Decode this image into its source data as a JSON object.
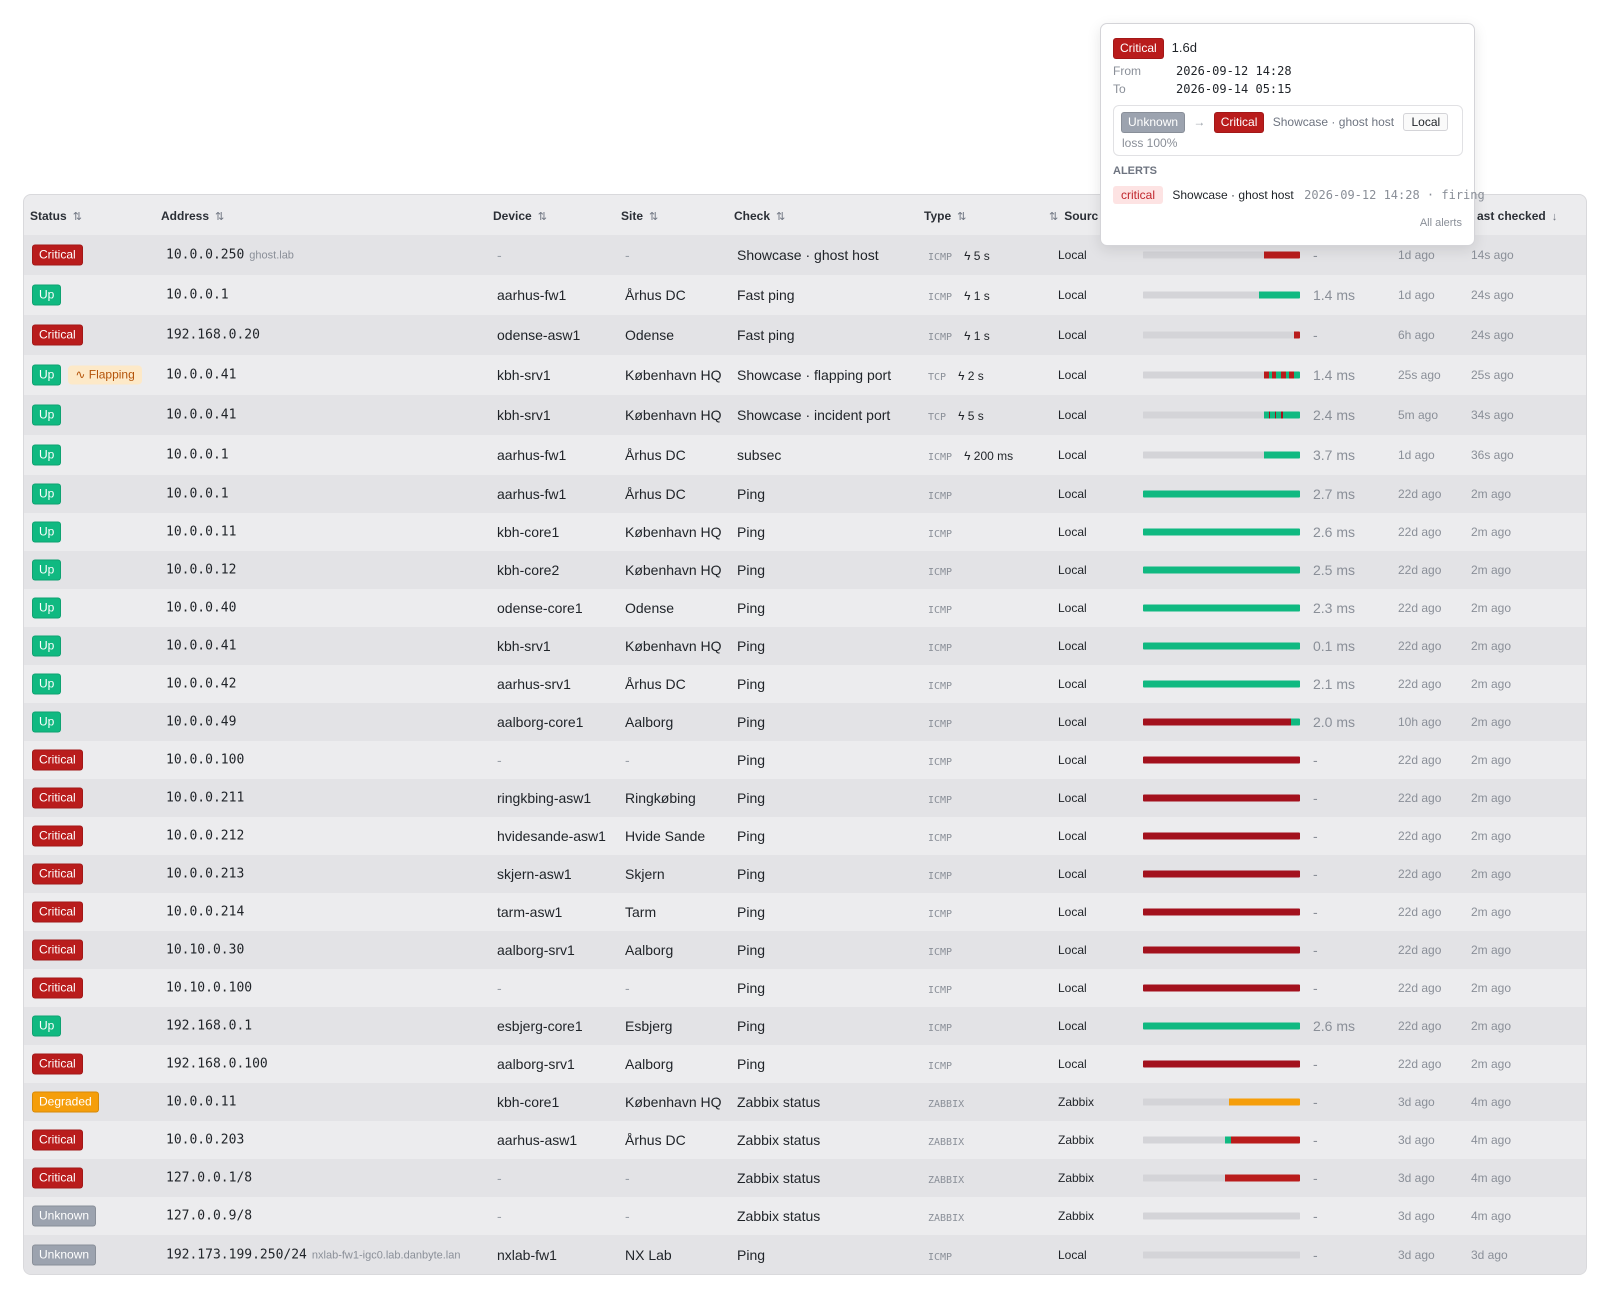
{
  "columns": {
    "status": "Status",
    "address": "Address",
    "device": "Device",
    "site": "Site",
    "check": "Check",
    "type": "Type",
    "source": "Sourc",
    "last_checked": "ast checked",
    "sort_icon": "⇅",
    "sort_desc_icon": "↓"
  },
  "colors": {
    "critical": "#b91c1c",
    "up": "#10b981",
    "degraded": "#f59e0b",
    "unknown": "#9ca3af",
    "dark_red": "#a3111d"
  },
  "popup": {
    "status": "Critical",
    "duration": "1.6d",
    "from_label": "From",
    "from_value": "2026-09-12 14:28",
    "to_label": "To",
    "to_value": "2026-09-14 05:15",
    "transition_from": "Unknown",
    "transition_arrow": "→",
    "transition_to": "Critical",
    "check_name": "Showcase · ghost host",
    "source": "Local",
    "detail": "loss 100%",
    "alerts_heading": "ALERTS",
    "alert_severity": "critical",
    "alert_check": "Showcase · ghost host",
    "alert_time": "2026-09-12 14:28 · firing",
    "all_alerts": "All alerts"
  },
  "rows": [
    {
      "status": "Critical",
      "kind": "critical",
      "flap": "",
      "address": "10.0.0.250",
      "hostname": "ghost.lab",
      "device": "-",
      "site": "-",
      "check": "Showcase · ghost host",
      "type": "ICMP",
      "interval": "ϟ 5 s",
      "source": "Local",
      "latency": "-",
      "first_seen": "1d ago",
      "last_checked": "14s ago",
      "history": [
        {
          "c": "unknown",
          "w": 0.77
        },
        {
          "c": "critical",
          "w": 0.23
        }
      ]
    },
    {
      "status": "Up",
      "kind": "up",
      "flap": "",
      "address": "10.0.0.1",
      "hostname": "",
      "device": "aarhus-fw1",
      "site": "Århus DC",
      "check": "Fast ping",
      "type": "ICMP",
      "interval": "ϟ 1 s",
      "source": "Local",
      "latency": "1.4 ms",
      "first_seen": "1d ago",
      "last_checked": "24s ago",
      "history": [
        {
          "c": "unknown",
          "w": 0.74
        },
        {
          "c": "up",
          "w": 0.26
        }
      ]
    },
    {
      "status": "Critical",
      "kind": "critical",
      "flap": "",
      "address": "192.168.0.20",
      "hostname": "",
      "device": "odense-asw1",
      "site": "Odense",
      "check": "Fast ping",
      "type": "ICMP",
      "interval": "ϟ 1 s",
      "source": "Local",
      "latency": "-",
      "first_seen": "6h ago",
      "last_checked": "24s ago",
      "history": [
        {
          "c": "unknown",
          "w": 0.96
        },
        {
          "c": "critical",
          "w": 0.04
        }
      ]
    },
    {
      "status": "Up",
      "kind": "up",
      "flap": "Flapping",
      "address": "10.0.0.41",
      "hostname": "",
      "device": "kbh-srv1",
      "site": "København HQ",
      "check": "Showcase · flapping port",
      "type": "TCP",
      "interval": "ϟ 2 s",
      "source": "Local",
      "latency": "1.4 ms",
      "first_seen": "25s ago",
      "last_checked": "25s ago",
      "history": [
        {
          "c": "unknown",
          "w": 0.77
        },
        {
          "c": "critical",
          "w": 0.03
        },
        {
          "c": "up",
          "w": 0.02
        },
        {
          "c": "critical",
          "w": 0.03
        },
        {
          "c": "up",
          "w": 0.03
        },
        {
          "c": "critical",
          "w": 0.03
        },
        {
          "c": "up",
          "w": 0.02
        },
        {
          "c": "critical",
          "w": 0.03
        },
        {
          "c": "up",
          "w": 0.04
        }
      ]
    },
    {
      "status": "Up",
      "kind": "up",
      "flap": "",
      "address": "10.0.0.41",
      "hostname": "",
      "device": "kbh-srv1",
      "site": "København HQ",
      "check": "Showcase · incident port",
      "type": "TCP",
      "interval": "ϟ 5 s",
      "source": "Local",
      "latency": "2.4 ms",
      "first_seen": "5m ago",
      "last_checked": "34s ago",
      "history": [
        {
          "c": "unknown",
          "w": 0.77
        },
        {
          "c": "up",
          "w": 0.03
        },
        {
          "c": "dark",
          "w": 0.01
        },
        {
          "c": "up",
          "w": 0.03
        },
        {
          "c": "dark",
          "w": 0.01
        },
        {
          "c": "up",
          "w": 0.03
        },
        {
          "c": "dark",
          "w": 0.01
        },
        {
          "c": "up",
          "w": 0.11
        }
      ]
    },
    {
      "status": "Up",
      "kind": "up",
      "flap": "",
      "address": "10.0.0.1",
      "hostname": "",
      "device": "aarhus-fw1",
      "site": "Århus DC",
      "check": "subsec",
      "type": "ICMP",
      "interval": "ϟ 200 ms",
      "source": "Local",
      "latency": "3.7 ms",
      "first_seen": "1d ago",
      "last_checked": "36s ago",
      "history": [
        {
          "c": "unknown",
          "w": 0.77
        },
        {
          "c": "up",
          "w": 0.23
        }
      ]
    },
    {
      "status": "Up",
      "kind": "up",
      "flap": "",
      "address": "10.0.0.1",
      "hostname": "",
      "device": "aarhus-fw1",
      "site": "Århus DC",
      "check": "Ping",
      "type": "ICMP",
      "interval": "",
      "source": "Local",
      "latency": "2.7 ms",
      "first_seen": "22d ago",
      "last_checked": "2m ago",
      "history": [
        {
          "c": "up",
          "w": 1
        }
      ]
    },
    {
      "status": "Up",
      "kind": "up",
      "flap": "",
      "address": "10.0.0.11",
      "hostname": "",
      "device": "kbh-core1",
      "site": "København HQ",
      "check": "Ping",
      "type": "ICMP",
      "interval": "",
      "source": "Local",
      "latency": "2.6 ms",
      "first_seen": "22d ago",
      "last_checked": "2m ago",
      "history": [
        {
          "c": "up",
          "w": 1
        }
      ]
    },
    {
      "status": "Up",
      "kind": "up",
      "flap": "",
      "address": "10.0.0.12",
      "hostname": "",
      "device": "kbh-core2",
      "site": "København HQ",
      "check": "Ping",
      "type": "ICMP",
      "interval": "",
      "source": "Local",
      "latency": "2.5 ms",
      "first_seen": "22d ago",
      "last_checked": "2m ago",
      "history": [
        {
          "c": "up",
          "w": 1
        }
      ]
    },
    {
      "status": "Up",
      "kind": "up",
      "flap": "",
      "address": "10.0.0.40",
      "hostname": "",
      "device": "odense-core1",
      "site": "Odense",
      "check": "Ping",
      "type": "ICMP",
      "interval": "",
      "source": "Local",
      "latency": "2.3 ms",
      "first_seen": "22d ago",
      "last_checked": "2m ago",
      "history": [
        {
          "c": "up",
          "w": 1
        }
      ]
    },
    {
      "status": "Up",
      "kind": "up",
      "flap": "",
      "address": "10.0.0.41",
      "hostname": "",
      "device": "kbh-srv1",
      "site": "København HQ",
      "check": "Ping",
      "type": "ICMP",
      "interval": "",
      "source": "Local",
      "latency": "0.1 ms",
      "first_seen": "22d ago",
      "last_checked": "2m ago",
      "history": [
        {
          "c": "up",
          "w": 1
        }
      ]
    },
    {
      "status": "Up",
      "kind": "up",
      "flap": "",
      "address": "10.0.0.42",
      "hostname": "",
      "device": "aarhus-srv1",
      "site": "Århus DC",
      "check": "Ping",
      "type": "ICMP",
      "interval": "",
      "source": "Local",
      "latency": "2.1 ms",
      "first_seen": "22d ago",
      "last_checked": "2m ago",
      "history": [
        {
          "c": "up",
          "w": 1
        }
      ]
    },
    {
      "status": "Up",
      "kind": "up",
      "flap": "",
      "address": "10.0.0.49",
      "hostname": "",
      "device": "aalborg-core1",
      "site": "Aalborg",
      "check": "Ping",
      "type": "ICMP",
      "interval": "",
      "source": "Local",
      "latency": "2.0 ms",
      "first_seen": "10h ago",
      "last_checked": "2m ago",
      "history": [
        {
          "c": "dark",
          "w": 0.94
        },
        {
          "c": "up",
          "w": 0.06
        }
      ]
    },
    {
      "status": "Critical",
      "kind": "critical",
      "flap": "",
      "address": "10.0.0.100",
      "hostname": "",
      "device": "-",
      "site": "-",
      "check": "Ping",
      "type": "ICMP",
      "interval": "",
      "source": "Local",
      "latency": "-",
      "first_seen": "22d ago",
      "last_checked": "2m ago",
      "history": [
        {
          "c": "dark",
          "w": 1
        }
      ]
    },
    {
      "status": "Critical",
      "kind": "critical",
      "flap": "",
      "address": "10.0.0.211",
      "hostname": "",
      "device": "ringkbing-asw1",
      "site": "Ringkøbing",
      "check": "Ping",
      "type": "ICMP",
      "interval": "",
      "source": "Local",
      "latency": "-",
      "first_seen": "22d ago",
      "last_checked": "2m ago",
      "history": [
        {
          "c": "dark",
          "w": 1
        }
      ]
    },
    {
      "status": "Critical",
      "kind": "critical",
      "flap": "",
      "address": "10.0.0.212",
      "hostname": "",
      "device": "hvidesande-asw1",
      "site": "Hvide Sande",
      "check": "Ping",
      "type": "ICMP",
      "interval": "",
      "source": "Local",
      "latency": "-",
      "first_seen": "22d ago",
      "last_checked": "2m ago",
      "history": [
        {
          "c": "dark",
          "w": 1
        }
      ]
    },
    {
      "status": "Critical",
      "kind": "critical",
      "flap": "",
      "address": "10.0.0.213",
      "hostname": "",
      "device": "skjern-asw1",
      "site": "Skjern",
      "check": "Ping",
      "type": "ICMP",
      "interval": "",
      "source": "Local",
      "latency": "-",
      "first_seen": "22d ago",
      "last_checked": "2m ago",
      "history": [
        {
          "c": "dark",
          "w": 1
        }
      ]
    },
    {
      "status": "Critical",
      "kind": "critical",
      "flap": "",
      "address": "10.0.0.214",
      "hostname": "",
      "device": "tarm-asw1",
      "site": "Tarm",
      "check": "Ping",
      "type": "ICMP",
      "interval": "",
      "source": "Local",
      "latency": "-",
      "first_seen": "22d ago",
      "last_checked": "2m ago",
      "history": [
        {
          "c": "dark",
          "w": 1
        }
      ]
    },
    {
      "status": "Critical",
      "kind": "critical",
      "flap": "",
      "address": "10.10.0.30",
      "hostname": "",
      "device": "aalborg-srv1",
      "site": "Aalborg",
      "check": "Ping",
      "type": "ICMP",
      "interval": "",
      "source": "Local",
      "latency": "-",
      "first_seen": "22d ago",
      "last_checked": "2m ago",
      "history": [
        {
          "c": "dark",
          "w": 1
        }
      ]
    },
    {
      "status": "Critical",
      "kind": "critical",
      "flap": "",
      "address": "10.10.0.100",
      "hostname": "",
      "device": "-",
      "site": "-",
      "check": "Ping",
      "type": "ICMP",
      "interval": "",
      "source": "Local",
      "latency": "-",
      "first_seen": "22d ago",
      "last_checked": "2m ago",
      "history": [
        {
          "c": "dark",
          "w": 1
        }
      ]
    },
    {
      "status": "Up",
      "kind": "up",
      "flap": "",
      "address": "192.168.0.1",
      "hostname": "",
      "device": "esbjerg-core1",
      "site": "Esbjerg",
      "check": "Ping",
      "type": "ICMP",
      "interval": "",
      "source": "Local",
      "latency": "2.6 ms",
      "first_seen": "22d ago",
      "last_checked": "2m ago",
      "history": [
        {
          "c": "up",
          "w": 1
        }
      ]
    },
    {
      "status": "Critical",
      "kind": "critical",
      "flap": "",
      "address": "192.168.0.100",
      "hostname": "",
      "device": "aalborg-srv1",
      "site": "Aalborg",
      "check": "Ping",
      "type": "ICMP",
      "interval": "",
      "source": "Local",
      "latency": "-",
      "first_seen": "22d ago",
      "last_checked": "2m ago",
      "history": [
        {
          "c": "dark",
          "w": 1
        }
      ]
    },
    {
      "status": "Degraded",
      "kind": "degraded",
      "flap": "",
      "address": "10.0.0.11",
      "hostname": "",
      "device": "kbh-core1",
      "site": "København HQ",
      "check": "Zabbix status",
      "type": "ZABBIX",
      "interval": "",
      "source": "Zabbix",
      "latency": "-",
      "first_seen": "3d ago",
      "last_checked": "4m ago",
      "history": [
        {
          "c": "unknown",
          "w": 0.55
        },
        {
          "c": "degraded",
          "w": 0.45
        }
      ]
    },
    {
      "status": "Critical",
      "kind": "critical",
      "flap": "",
      "address": "10.0.0.203",
      "hostname": "",
      "device": "aarhus-asw1",
      "site": "Århus DC",
      "check": "Zabbix status",
      "type": "ZABBIX",
      "interval": "",
      "source": "Zabbix",
      "latency": "-",
      "first_seen": "3d ago",
      "last_checked": "4m ago",
      "history": [
        {
          "c": "unknown",
          "w": 0.52
        },
        {
          "c": "up",
          "w": 0.04
        },
        {
          "c": "critical",
          "w": 0.44
        }
      ]
    },
    {
      "status": "Critical",
      "kind": "critical",
      "flap": "",
      "address": "127.0.0.1/8",
      "hostname": "",
      "device": "-",
      "site": "-",
      "check": "Zabbix status",
      "type": "ZABBIX",
      "interval": "",
      "source": "Zabbix",
      "latency": "-",
      "first_seen": "3d ago",
      "last_checked": "4m ago",
      "history": [
        {
          "c": "unknown",
          "w": 0.52
        },
        {
          "c": "critical",
          "w": 0.48
        }
      ]
    },
    {
      "status": "Unknown",
      "kind": "unknown",
      "flap": "",
      "address": "127.0.0.9/8",
      "hostname": "",
      "device": "-",
      "site": "-",
      "check": "Zabbix status",
      "type": "ZABBIX",
      "interval": "",
      "source": "Zabbix",
      "latency": "-",
      "first_seen": "3d ago",
      "last_checked": "4m ago",
      "history": [
        {
          "c": "unknown",
          "w": 1
        }
      ]
    },
    {
      "status": "Unknown",
      "kind": "unknown",
      "flap": "",
      "address": "192.173.199.250/24",
      "hostname": "nxlab-fw1-igc0.lab.danbyte.lan",
      "device": "nxlab-fw1",
      "site": "NX Lab",
      "check": "Ping",
      "type": "ICMP",
      "interval": "",
      "source": "Local",
      "latency": "-",
      "first_seen": "3d ago",
      "last_checked": "3d ago",
      "history": [
        {
          "c": "unknown",
          "w": 1
        }
      ]
    }
  ]
}
